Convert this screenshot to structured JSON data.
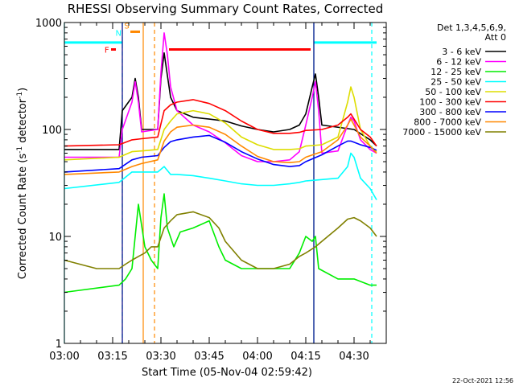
{
  "chart_data": {
    "type": "line",
    "title": "RHESSI Observing Summary Count Rates, Corrected",
    "xlabel": "Start Time (05-Nov-04 02:59:42)",
    "ylabel": "Corrected Count Rate (s",
    "ylabel_sup1": "-1",
    "ylabel_mid": " detector",
    "ylabel_sup2": "-1",
    "ylabel_end": ")",
    "ylog": true,
    "ylim": [
      1,
      1000
    ],
    "xlim_minutes": [
      0,
      100
    ],
    "y_ticks": [
      {
        "v": 1,
        "label": "1"
      },
      {
        "v": 10,
        "label": "10"
      },
      {
        "v": 100,
        "label": "100"
      },
      {
        "v": 1000,
        "label": "1000"
      }
    ],
    "x_ticks": [
      {
        "m": 0,
        "label": "03:00"
      },
      {
        "m": 15,
        "label": "03:15"
      },
      {
        "m": 30,
        "label": "03:30"
      },
      {
        "m": 45,
        "label": "03:45"
      },
      {
        "m": 60,
        "label": "04:00"
      },
      {
        "m": 75,
        "label": "04:15"
      },
      {
        "m": 90,
        "label": "04:30"
      }
    ],
    "legend": {
      "header1": "Det 1,3,4,5,6,9,",
      "header2": "Att 0",
      "placement": "right"
    },
    "series": [
      {
        "name": "3 - 6 keV",
        "color": "#000000",
        "points": [
          [
            0,
            65
          ],
          [
            17,
            65
          ],
          [
            18,
            150
          ],
          [
            21,
            200
          ],
          [
            22,
            300
          ],
          [
            23,
            200
          ],
          [
            24,
            100
          ],
          [
            29,
            100
          ],
          [
            30,
            300
          ],
          [
            31,
            520
          ],
          [
            32,
            320
          ],
          [
            33,
            200
          ],
          [
            35,
            150
          ],
          [
            40,
            130
          ],
          [
            45,
            125
          ],
          [
            50,
            120
          ],
          [
            55,
            108
          ],
          [
            60,
            100
          ],
          [
            65,
            95
          ],
          [
            70,
            100
          ],
          [
            73,
            110
          ],
          [
            75,
            140
          ],
          [
            77,
            250
          ],
          [
            78,
            330
          ],
          [
            79,
            200
          ],
          [
            80,
            110
          ],
          [
            90,
            100
          ],
          [
            95,
            80
          ],
          [
            97,
            70
          ]
        ]
      },
      {
        "name": "6 - 12 keV",
        "color": "#ff00ff",
        "points": [
          [
            0,
            55
          ],
          [
            17,
            55
          ],
          [
            18,
            100
          ],
          [
            21,
            180
          ],
          [
            22,
            280
          ],
          [
            23,
            180
          ],
          [
            24,
            95
          ],
          [
            29,
            100
          ],
          [
            30,
            340
          ],
          [
            31,
            800
          ],
          [
            32,
            500
          ],
          [
            33,
            250
          ],
          [
            35,
            150
          ],
          [
            40,
            110
          ],
          [
            45,
            95
          ],
          [
            50,
            75
          ],
          [
            55,
            57
          ],
          [
            60,
            50
          ],
          [
            65,
            50
          ],
          [
            70,
            52
          ],
          [
            73,
            62
          ],
          [
            75,
            110
          ],
          [
            77,
            200
          ],
          [
            78,
            280
          ],
          [
            79,
            150
          ],
          [
            80,
            60
          ],
          [
            85,
            63
          ],
          [
            88,
            110
          ],
          [
            89,
            130
          ],
          [
            90,
            120
          ],
          [
            92,
            80
          ],
          [
            95,
            65
          ],
          [
            97,
            60
          ]
        ]
      },
      {
        "name": "12 - 25 keV",
        "color": "#00ee00",
        "points": [
          [
            0,
            3
          ],
          [
            17,
            3.5
          ],
          [
            19,
            4
          ],
          [
            21,
            5
          ],
          [
            23,
            20
          ],
          [
            25,
            8
          ],
          [
            27,
            6
          ],
          [
            29,
            5
          ],
          [
            30,
            15
          ],
          [
            31,
            25
          ],
          [
            32,
            12
          ],
          [
            34,
            8
          ],
          [
            36,
            11
          ],
          [
            40,
            12
          ],
          [
            45,
            14
          ],
          [
            48,
            8
          ],
          [
            50,
            6
          ],
          [
            55,
            5
          ],
          [
            60,
            5
          ],
          [
            65,
            5
          ],
          [
            70,
            5
          ],
          [
            73,
            7
          ],
          [
            75,
            10
          ],
          [
            77,
            9
          ],
          [
            78,
            10
          ],
          [
            79,
            5
          ],
          [
            85,
            4
          ],
          [
            88,
            4
          ],
          [
            90,
            4
          ],
          [
            95,
            3.5
          ],
          [
            97,
            3.5
          ]
        ]
      },
      {
        "name": "25 - 50 keV",
        "color": "#00ffff",
        "points": [
          [
            0,
            28
          ],
          [
            17,
            32
          ],
          [
            21,
            40
          ],
          [
            24,
            40
          ],
          [
            29,
            40
          ],
          [
            31,
            45
          ],
          [
            33,
            38
          ],
          [
            35,
            38
          ],
          [
            40,
            37
          ],
          [
            45,
            35
          ],
          [
            50,
            33
          ],
          [
            55,
            31
          ],
          [
            60,
            30
          ],
          [
            65,
            30
          ],
          [
            70,
            31
          ],
          [
            73,
            32
          ],
          [
            75,
            33
          ],
          [
            80,
            34
          ],
          [
            85,
            35
          ],
          [
            88,
            45
          ],
          [
            89,
            60
          ],
          [
            90,
            55
          ],
          [
            92,
            35
          ],
          [
            95,
            28
          ],
          [
            97,
            22
          ]
        ]
      },
      {
        "name": "50 - 100 keV",
        "color": "#dddd00",
        "points": [
          [
            0,
            52
          ],
          [
            17,
            55
          ],
          [
            21,
            62
          ],
          [
            24,
            63
          ],
          [
            29,
            65
          ],
          [
            31,
            100
          ],
          [
            33,
            120
          ],
          [
            35,
            140
          ],
          [
            40,
            150
          ],
          [
            45,
            140
          ],
          [
            50,
            115
          ],
          [
            55,
            85
          ],
          [
            60,
            72
          ],
          [
            65,
            65
          ],
          [
            70,
            65
          ],
          [
            73,
            66
          ],
          [
            75,
            70
          ],
          [
            80,
            72
          ],
          [
            85,
            85
          ],
          [
            88,
            180
          ],
          [
            89,
            250
          ],
          [
            90,
            200
          ],
          [
            92,
            100
          ],
          [
            95,
            70
          ],
          [
            97,
            62
          ]
        ]
      },
      {
        "name": "100 - 300 keV",
        "color": "#ff0000",
        "points": [
          [
            0,
            70
          ],
          [
            17,
            72
          ],
          [
            21,
            80
          ],
          [
            24,
            82
          ],
          [
            29,
            85
          ],
          [
            31,
            150
          ],
          [
            33,
            170
          ],
          [
            35,
            180
          ],
          [
            40,
            190
          ],
          [
            45,
            175
          ],
          [
            50,
            150
          ],
          [
            55,
            120
          ],
          [
            60,
            100
          ],
          [
            65,
            92
          ],
          [
            70,
            92
          ],
          [
            73,
            94
          ],
          [
            75,
            98
          ],
          [
            80,
            100
          ],
          [
            85,
            110
          ],
          [
            88,
            130
          ],
          [
            89,
            140
          ],
          [
            90,
            125
          ],
          [
            92,
            100
          ],
          [
            95,
            85
          ],
          [
            97,
            70
          ]
        ]
      },
      {
        "name": "300 - 800 keV",
        "color": "#0000ff",
        "points": [
          [
            0,
            40
          ],
          [
            17,
            43
          ],
          [
            21,
            52
          ],
          [
            24,
            55
          ],
          [
            29,
            57
          ],
          [
            31,
            68
          ],
          [
            33,
            77
          ],
          [
            35,
            80
          ],
          [
            40,
            85
          ],
          [
            45,
            88
          ],
          [
            50,
            76
          ],
          [
            55,
            62
          ],
          [
            60,
            53
          ],
          [
            65,
            47
          ],
          [
            70,
            45
          ],
          [
            73,
            46
          ],
          [
            75,
            50
          ],
          [
            80,
            58
          ],
          [
            85,
            70
          ],
          [
            88,
            78
          ],
          [
            89,
            78
          ],
          [
            90,
            76
          ],
          [
            92,
            72
          ],
          [
            95,
            68
          ],
          [
            97,
            64
          ]
        ]
      },
      {
        "name": "800 - 7000 keV",
        "color": "#ff8800",
        "points": [
          [
            0,
            38
          ],
          [
            17,
            40
          ],
          [
            21,
            45
          ],
          [
            24,
            48
          ],
          [
            29,
            52
          ],
          [
            31,
            78
          ],
          [
            33,
            95
          ],
          [
            35,
            105
          ],
          [
            40,
            110
          ],
          [
            45,
            105
          ],
          [
            50,
            90
          ],
          [
            55,
            70
          ],
          [
            60,
            56
          ],
          [
            65,
            50
          ],
          [
            70,
            49
          ],
          [
            73,
            50
          ],
          [
            75,
            55
          ],
          [
            80,
            62
          ],
          [
            85,
            80
          ],
          [
            88,
            110
          ],
          [
            89,
            125
          ],
          [
            90,
            110
          ],
          [
            92,
            85
          ],
          [
            95,
            70
          ],
          [
            97,
            60
          ]
        ]
      },
      {
        "name": "7000 - 15000 keV",
        "color": "#808000",
        "points": [
          [
            0,
            6
          ],
          [
            10,
            5
          ],
          [
            17,
            5
          ],
          [
            19,
            5.5
          ],
          [
            21,
            6
          ],
          [
            23,
            6.5
          ],
          [
            25,
            7
          ],
          [
            27,
            8
          ],
          [
            29,
            8
          ],
          [
            31,
            12
          ],
          [
            33,
            14
          ],
          [
            35,
            16
          ],
          [
            40,
            17
          ],
          [
            45,
            15
          ],
          [
            48,
            12
          ],
          [
            50,
            9
          ],
          [
            55,
            6
          ],
          [
            60,
            5
          ],
          [
            65,
            5
          ],
          [
            70,
            5.5
          ],
          [
            73,
            6.5
          ],
          [
            75,
            7
          ],
          [
            78,
            8
          ],
          [
            80,
            9
          ],
          [
            85,
            12
          ],
          [
            88,
            14.5
          ],
          [
            90,
            15
          ],
          [
            92,
            14
          ],
          [
            95,
            12
          ],
          [
            97,
            10
          ]
        ]
      }
    ],
    "annotations": [
      {
        "text": "F",
        "color": "#ff0000"
      },
      {
        "text": "N",
        "color": "#00ffff"
      },
      {
        "text": "S",
        "color": "#ff8800"
      }
    ],
    "verticals": [
      {
        "m": 0,
        "color": "#00ffff",
        "dash": false
      },
      {
        "m": 18,
        "color": "#00ffff",
        "dash": true
      },
      {
        "m": 18,
        "color": "#000080",
        "dash": false
      },
      {
        "m": 24.5,
        "color": "#ff8800",
        "dash": false
      },
      {
        "m": 28,
        "color": "#ff8800",
        "dash": true
      },
      {
        "m": 77.5,
        "color": "#00ffff",
        "dash": false
      },
      {
        "m": 77.5,
        "color": "#000080",
        "dash": false
      },
      {
        "m": 95.5,
        "color": "#00ffff",
        "dash": true
      }
    ],
    "flag_segments": [
      {
        "m0": 0,
        "m1": 18,
        "level": 650,
        "color": "#00ffff"
      },
      {
        "m0": 77.5,
        "m1": 97,
        "level": 650,
        "color": "#00ffff"
      },
      {
        "m0": 14.5,
        "m1": 16,
        "level": 560,
        "color": "#ff0000"
      },
      {
        "m0": 20.5,
        "m1": 23.5,
        "level": 820,
        "color": "#ff8800"
      },
      {
        "m0": 32.5,
        "m1": 76.5,
        "level": 560,
        "color": "#ff0000"
      }
    ]
  },
  "timestamp": "22-Oct-2021 12:56"
}
